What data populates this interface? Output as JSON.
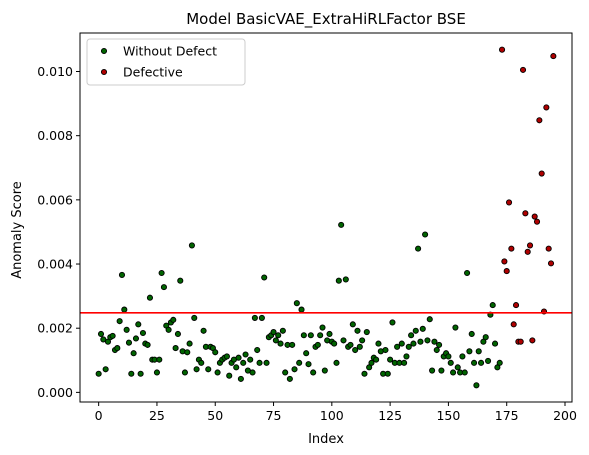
{
  "chart_data": {
    "type": "scatter",
    "title": "Model BasicVAE_ExtraHiRLFactor BSE",
    "xlabel": "Index",
    "ylabel": "Anomaly Score",
    "xlim": [
      -8,
      203
    ],
    "ylim": [
      -0.0003,
      0.0112
    ],
    "xticks": [
      0,
      25,
      50,
      75,
      100,
      125,
      150,
      175,
      200
    ],
    "xtick_labels": [
      "0",
      "25",
      "50",
      "75",
      "100",
      "125",
      "150",
      "175",
      "200"
    ],
    "yticks": [
      0.0,
      0.002,
      0.004,
      0.006,
      0.008,
      0.01
    ],
    "ytick_labels": [
      "0.000",
      "0.002",
      "0.004",
      "0.006",
      "0.008",
      "0.010"
    ],
    "grid": false,
    "legend_position": "top-left",
    "threshold": {
      "y": 0.00248,
      "color": "#ff0000"
    },
    "series": [
      {
        "name": "Without Defect",
        "color": "#006400",
        "points": [
          [
            0,
            0.00058
          ],
          [
            1,
            0.00182
          ],
          [
            2,
            0.00165
          ],
          [
            3,
            0.00072
          ],
          [
            4,
            0.00158
          ],
          [
            5,
            0.00172
          ],
          [
            6,
            0.00176
          ],
          [
            7,
            0.00132
          ],
          [
            8,
            0.00138
          ],
          [
            9,
            0.00222
          ],
          [
            10,
            0.00366
          ],
          [
            11,
            0.00258
          ],
          [
            12,
            0.00195
          ],
          [
            13,
            0.00155
          ],
          [
            14,
            0.00058
          ],
          [
            15,
            0.00122
          ],
          [
            16,
            0.00168
          ],
          [
            17,
            0.00212
          ],
          [
            18,
            0.00058
          ],
          [
            19,
            0.00185
          ],
          [
            20,
            0.00152
          ],
          [
            21,
            0.00148
          ],
          [
            22,
            0.00295
          ],
          [
            23,
            0.00102
          ],
          [
            24,
            0.00102
          ],
          [
            25,
            0.00062
          ],
          [
            26,
            0.00102
          ],
          [
            27,
            0.00372
          ],
          [
            28,
            0.00328
          ],
          [
            29,
            0.00208
          ],
          [
            30,
            0.00195
          ],
          [
            31,
            0.00218
          ],
          [
            32,
            0.00226
          ],
          [
            33,
            0.00138
          ],
          [
            34,
            0.00182
          ],
          [
            35,
            0.00348
          ],
          [
            36,
            0.00128
          ],
          [
            37,
            0.00062
          ],
          [
            38,
            0.00125
          ],
          [
            39,
            0.00152
          ],
          [
            40,
            0.00458
          ],
          [
            41,
            0.00232
          ],
          [
            42,
            0.00072
          ],
          [
            43,
            0.00102
          ],
          [
            44,
            0.00092
          ],
          [
            45,
            0.00192
          ],
          [
            46,
            0.00142
          ],
          [
            47,
            0.00072
          ],
          [
            48,
            0.00142
          ],
          [
            49,
            0.00138
          ],
          [
            50,
            0.00125
          ],
          [
            51,
            0.00062
          ],
          [
            52,
            0.00092
          ],
          [
            53,
            0.00102
          ],
          [
            54,
            0.00108
          ],
          [
            55,
            0.00112
          ],
          [
            56,
            0.00052
          ],
          [
            57,
            0.00092
          ],
          [
            58,
            0.00102
          ],
          [
            59,
            0.00078
          ],
          [
            60,
            0.00108
          ],
          [
            61,
            0.00042
          ],
          [
            62,
            0.00092
          ],
          [
            63,
            0.00118
          ],
          [
            64,
            0.00068
          ],
          [
            65,
            0.00102
          ],
          [
            66,
            0.00062
          ],
          [
            67,
            0.00232
          ],
          [
            68,
            0.00132
          ],
          [
            69,
            0.00092
          ],
          [
            70,
            0.00232
          ],
          [
            71,
            0.00358
          ],
          [
            72,
            0.00092
          ],
          [
            73,
            0.00172
          ],
          [
            74,
            0.00178
          ],
          [
            75,
            0.00188
          ],
          [
            76,
            0.00162
          ],
          [
            77,
            0.00178
          ],
          [
            78,
            0.00152
          ],
          [
            79,
            0.00192
          ],
          [
            80,
            0.00062
          ],
          [
            81,
            0.00148
          ],
          [
            82,
            0.00042
          ],
          [
            83,
            0.00148
          ],
          [
            84,
            0.00072
          ],
          [
            85,
            0.00278
          ],
          [
            86,
            0.00092
          ],
          [
            87,
            0.00258
          ],
          [
            88,
            0.00178
          ],
          [
            89,
            0.00122
          ],
          [
            90,
            0.00088
          ],
          [
            91,
            0.00178
          ],
          [
            92,
            0.00062
          ],
          [
            93,
            0.00142
          ],
          [
            94,
            0.00148
          ],
          [
            95,
            0.00178
          ],
          [
            96,
            0.00202
          ],
          [
            97,
            0.00068
          ],
          [
            98,
            0.00162
          ],
          [
            99,
            0.00182
          ],
          [
            100,
            0.00158
          ],
          [
            101,
            0.00152
          ],
          [
            102,
            0.00092
          ],
          [
            103,
            0.00348
          ],
          [
            104,
            0.00522
          ],
          [
            105,
            0.00162
          ],
          [
            106,
            0.00352
          ],
          [
            107,
            0.00142
          ],
          [
            108,
            0.00148
          ],
          [
            109,
            0.00212
          ],
          [
            110,
            0.00132
          ],
          [
            111,
            0.00192
          ],
          [
            112,
            0.00142
          ],
          [
            113,
            0.00162
          ],
          [
            114,
            0.00058
          ],
          [
            115,
            0.00188
          ],
          [
            116,
            0.00078
          ],
          [
            117,
            0.00092
          ],
          [
            118,
            0.00108
          ],
          [
            119,
            0.00102
          ],
          [
            120,
            0.00152
          ],
          [
            121,
            0.00128
          ],
          [
            122,
            0.00058
          ],
          [
            123,
            0.00132
          ],
          [
            124,
            0.00058
          ],
          [
            125,
            0.00102
          ],
          [
            126,
            0.00218
          ],
          [
            127,
            0.00092
          ],
          [
            128,
            0.00142
          ],
          [
            129,
            0.00092
          ],
          [
            130,
            0.00152
          ],
          [
            131,
            0.00092
          ],
          [
            132,
            0.00112
          ],
          [
            133,
            0.00142
          ],
          [
            134,
            0.00178
          ],
          [
            135,
            0.00152
          ],
          [
            136,
            0.00192
          ],
          [
            137,
            0.00448
          ],
          [
            138,
            0.00158
          ],
          [
            139,
            0.00198
          ],
          [
            140,
            0.00492
          ],
          [
            141,
            0.00162
          ],
          [
            142,
            0.00228
          ],
          [
            143,
            0.00068
          ],
          [
            144,
            0.00158
          ],
          [
            145,
            0.00132
          ],
          [
            146,
            0.00148
          ],
          [
            147,
            0.00068
          ],
          [
            148,
            0.00112
          ],
          [
            149,
            0.00122
          ],
          [
            150,
            0.00112
          ],
          [
            151,
            0.00092
          ],
          [
            152,
            0.00062
          ],
          [
            153,
            0.00202
          ],
          [
            154,
            0.00078
          ],
          [
            155,
            0.00062
          ],
          [
            156,
            0.00112
          ],
          [
            157,
            0.00062
          ],
          [
            158,
            0.00372
          ],
          [
            159,
            0.00128
          ],
          [
            160,
            0.00182
          ],
          [
            161,
            0.00092
          ],
          [
            162,
            0.00022
          ],
          [
            163,
            0.00128
          ],
          [
            164,
            0.00092
          ],
          [
            165,
            0.00158
          ],
          [
            166,
            0.00172
          ],
          [
            167,
            0.00098
          ],
          [
            168,
            0.00242
          ],
          [
            169,
            0.00272
          ],
          [
            170,
            0.00152
          ],
          [
            171,
            0.00078
          ],
          [
            172,
            0.00092
          ]
        ]
      },
      {
        "name": "Defective",
        "color": "#b00000",
        "points": [
          [
            173,
            0.01068
          ],
          [
            174,
            0.00408
          ],
          [
            175,
            0.00378
          ],
          [
            176,
            0.00592
          ],
          [
            177,
            0.00448
          ],
          [
            178,
            0.00212
          ],
          [
            179,
            0.00272
          ],
          [
            180,
            0.00158
          ],
          [
            181,
            0.00158
          ],
          [
            182,
            0.01005
          ],
          [
            183,
            0.00558
          ],
          [
            184,
            0.00438
          ],
          [
            185,
            0.00458
          ],
          [
            186,
            0.00162
          ],
          [
            187,
            0.00548
          ],
          [
            188,
            0.00532
          ],
          [
            189,
            0.00848
          ],
          [
            190,
            0.00682
          ],
          [
            191,
            0.00252
          ],
          [
            192,
            0.00888
          ],
          [
            193,
            0.00448
          ],
          [
            194,
            0.00402
          ],
          [
            195,
            0.01048
          ]
        ]
      }
    ]
  }
}
